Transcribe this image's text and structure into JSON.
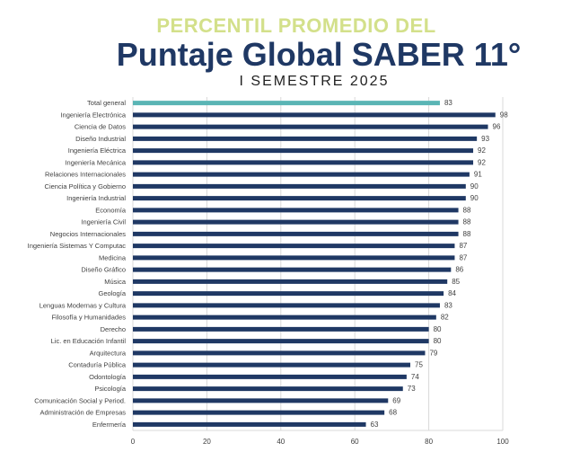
{
  "chart_data": {
    "type": "bar",
    "orientation": "horizontal",
    "title_line1": "PERCENTIL PROMEDIO DEL",
    "title_line2": "Puntaje Global SABER 11°",
    "subtitle": "I SEMESTRE 2025",
    "categories": [
      "Total general",
      "Ingeniería Electrónica",
      "Ciencia de Datos",
      "Diseño Industrial",
      "Ingeniería Eléctrica",
      "Ingeniería Mecánica",
      "Relaciones Internacionales",
      "Ciencia Política y Gobierno",
      "Ingeniería Industrial",
      "Economía",
      "Ingeniería Civil",
      "Negocios Internacionales",
      "Ingeniería Sistemas Y Computac",
      "Medicina",
      "Diseño Gráfico",
      "Música",
      "Geología",
      "Lenguas Modernas y Cultura",
      "Filosofía y Humanidades",
      "Derecho",
      "Lic. en Educación Infantil",
      "Arquitectura",
      "Contaduría Pública",
      "Odontología",
      "Psicología",
      "Comunicación Social y Period.",
      "Administración de Empresas",
      "Enfermería"
    ],
    "values": [
      83,
      98,
      96,
      93,
      92,
      92,
      91,
      90,
      90,
      88,
      88,
      88,
      87,
      87,
      86,
      85,
      84,
      83,
      82,
      80,
      80,
      79,
      75,
      74,
      73,
      69,
      68,
      63
    ],
    "xlim": [
      0,
      100
    ],
    "xticks": [
      0,
      20,
      40,
      60,
      80,
      100
    ],
    "grid": true,
    "highlight_index": 0,
    "colors": {
      "highlight": "#5ab5b5",
      "bar": "#1f3864",
      "grid": "#d9d9d9",
      "text": "#404040"
    }
  }
}
